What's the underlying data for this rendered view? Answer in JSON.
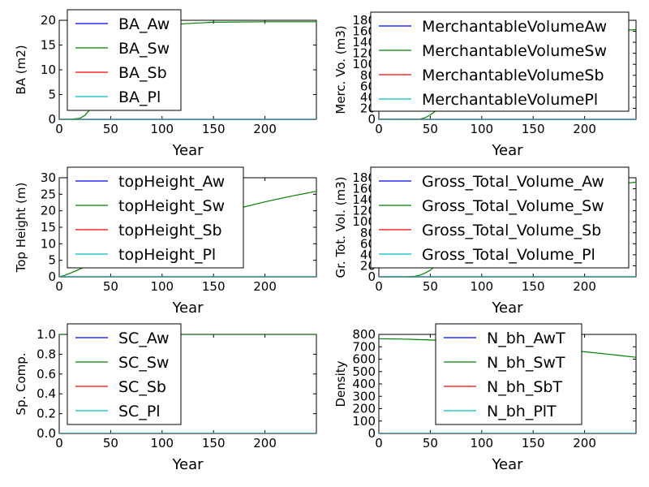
{
  "colors": {
    "Aw": "#0000ff",
    "Sw": "#008000",
    "Sb": "#ff0000",
    "Pl": "#00bfbf"
  },
  "chart_data": [
    {
      "type": "line",
      "xlabel": "Year",
      "ylabel": "BA (m2)",
      "xlim": [
        0,
        250
      ],
      "ylim": [
        0,
        20
      ],
      "xticks": [
        0,
        50,
        100,
        150,
        200
      ],
      "yticks": [
        0,
        5,
        10,
        15,
        20
      ],
      "legend_position": "upper-left",
      "series": [
        {
          "name": "BA_Aw",
          "color": "#0000ff",
          "x": [
            0,
            250
          ],
          "y": [
            0,
            0
          ]
        },
        {
          "name": "BA_Sw",
          "color": "#008000",
          "x": [
            0,
            10,
            20,
            25,
            30,
            35,
            40,
            45,
            50,
            60,
            70,
            80,
            90,
            100,
            120,
            150,
            200,
            250
          ],
          "y": [
            0,
            0,
            0.2,
            0.8,
            2.0,
            3.8,
            6.0,
            8.3,
            10.4,
            13.8,
            16.0,
            17.4,
            18.3,
            18.8,
            19.3,
            19.6,
            19.7,
            19.7
          ]
        },
        {
          "name": "BA_Sb",
          "color": "#ff0000",
          "x": [
            0,
            250
          ],
          "y": [
            0,
            0
          ]
        },
        {
          "name": "BA_Pl",
          "color": "#00bfbf",
          "x": [
            0,
            250
          ],
          "y": [
            0,
            0
          ]
        }
      ]
    },
    {
      "type": "line",
      "xlabel": "Year",
      "ylabel": "Merc. Vo. (m3)",
      "xlim": [
        0,
        250
      ],
      "ylim": [
        0,
        180
      ],
      "xticks": [
        0,
        50,
        100,
        150,
        200
      ],
      "yticks": [
        0,
        20,
        40,
        60,
        80,
        100,
        120,
        140,
        160,
        180
      ],
      "legend_position": "upper-left",
      "series": [
        {
          "name": "MerchantableVolumeAw",
          "color": "#0000ff",
          "x": [
            0,
            250
          ],
          "y": [
            0,
            0
          ]
        },
        {
          "name": "MerchantableVolumeSw",
          "color": "#008000",
          "x": [
            0,
            30,
            40,
            45,
            50,
            60,
            70,
            80,
            100,
            120,
            150,
            200,
            240,
            250
          ],
          "y": [
            0,
            0,
            0.5,
            3,
            8,
            22,
            38,
            55,
            85,
            108,
            130,
            152,
            162,
            163
          ]
        },
        {
          "name": "MerchantableVolumeSb",
          "color": "#ff0000",
          "x": [
            0,
            250
          ],
          "y": [
            0,
            0
          ]
        },
        {
          "name": "MerchantableVolumePl",
          "color": "#00bfbf",
          "x": [
            0,
            250
          ],
          "y": [
            0,
            0
          ]
        }
      ]
    },
    {
      "type": "line",
      "xlabel": "Year",
      "ylabel": "Top Height (m)",
      "xlim": [
        0,
        250
      ],
      "ylim": [
        0,
        30
      ],
      "xticks": [
        0,
        50,
        100,
        150,
        200
      ],
      "yticks": [
        0,
        5,
        10,
        15,
        20,
        25,
        30
      ],
      "legend_position": "upper-left",
      "series": [
        {
          "name": "topHeight_Aw",
          "color": "#0000ff",
          "x": [
            0,
            250
          ],
          "y": [
            0,
            0
          ]
        },
        {
          "name": "topHeight_Sw",
          "color": "#008000",
          "x": [
            0,
            5,
            10,
            20,
            30,
            40,
            50,
            75,
            100,
            125,
            150,
            175,
            200,
            225,
            250
          ],
          "y": [
            0,
            0.4,
            1.0,
            2.3,
            3.9,
            5.5,
            7.0,
            10.4,
            13.5,
            16.2,
            18.6,
            20.8,
            22.7,
            24.4,
            25.9
          ]
        },
        {
          "name": "topHeight_Sb",
          "color": "#ff0000",
          "x": [
            0,
            250
          ],
          "y": [
            0,
            0
          ]
        },
        {
          "name": "topHeight_Pl",
          "color": "#00bfbf",
          "x": [
            0,
            250
          ],
          "y": [
            0,
            0
          ]
        }
      ]
    },
    {
      "type": "line",
      "xlabel": "Year",
      "ylabel": "Gr. Tot. Vol. (m3)",
      "xlim": [
        0,
        250
      ],
      "ylim": [
        0,
        180
      ],
      "xticks": [
        0,
        50,
        100,
        150,
        200
      ],
      "yticks": [
        0,
        20,
        40,
        60,
        80,
        100,
        120,
        140,
        160,
        180
      ],
      "legend_position": "upper-left",
      "series": [
        {
          "name": "Gross_Total_Volume_Aw",
          "color": "#0000ff",
          "x": [
            0,
            250
          ],
          "y": [
            0,
            0
          ]
        },
        {
          "name": "Gross_Total_Volume_Sw",
          "color": "#008000",
          "x": [
            0,
            25,
            35,
            40,
            45,
            50,
            60,
            70,
            80,
            100,
            120,
            150,
            200,
            240,
            250
          ],
          "y": [
            0,
            0,
            1,
            3,
            7,
            12,
            28,
            45,
            62,
            92,
            115,
            137,
            160,
            170,
            172
          ]
        },
        {
          "name": "Gross_Total_Volume_Sb",
          "color": "#ff0000",
          "x": [
            0,
            250
          ],
          "y": [
            0,
            0
          ]
        },
        {
          "name": "Gross_Total_Volume_Pl",
          "color": "#00bfbf",
          "x": [
            0,
            250
          ],
          "y": [
            0,
            0
          ]
        }
      ]
    },
    {
      "type": "line",
      "xlabel": "Year",
      "ylabel": "Sp. Comp.",
      "xlim": [
        0,
        250
      ],
      "ylim": [
        0,
        1.0
      ],
      "xticks": [
        0,
        50,
        100,
        150,
        200
      ],
      "yticks": [
        "0.0",
        "0.2",
        "0.4",
        "0.6",
        "0.8",
        "1.0"
      ],
      "legend_position": "upper-left",
      "series": [
        {
          "name": "SC_Aw",
          "color": "#0000ff",
          "x": [
            0,
            250
          ],
          "y": [
            0,
            0
          ]
        },
        {
          "name": "SC_Sw",
          "color": "#008000",
          "x": [
            0,
            250
          ],
          "y": [
            1.0,
            1.0
          ]
        },
        {
          "name": "SC_Sb",
          "color": "#ff0000",
          "x": [
            0,
            250
          ],
          "y": [
            0,
            0
          ]
        },
        {
          "name": "SC_Pl",
          "color": "#00bfbf",
          "x": [
            0,
            250
          ],
          "y": [
            0,
            0
          ]
        }
      ]
    },
    {
      "type": "line",
      "xlabel": "Year",
      "ylabel": "Density",
      "xlim": [
        0,
        250
      ],
      "ylim": [
        0,
        800
      ],
      "xticks": [
        0,
        50,
        100,
        150,
        200
      ],
      "yticks": [
        0,
        100,
        200,
        300,
        400,
        500,
        600,
        700,
        800
      ],
      "legend_position": "upper-center",
      "series": [
        {
          "name": "N_bh_AwT",
          "color": "#0000ff",
          "x": [
            0,
            250
          ],
          "y": [
            0,
            0
          ]
        },
        {
          "name": "N_bh_SwT",
          "color": "#008000",
          "x": [
            0,
            25,
            50,
            75,
            100,
            125,
            150,
            175,
            200,
            225,
            250
          ],
          "y": [
            765,
            762,
            755,
            745,
            732,
            718,
            700,
            680,
            660,
            638,
            615
          ]
        },
        {
          "name": "N_bh_SbT",
          "color": "#ff0000",
          "x": [
            0,
            250
          ],
          "y": [
            0,
            0
          ]
        },
        {
          "name": "N_bh_PlT",
          "color": "#00bfbf",
          "x": [
            0,
            250
          ],
          "y": [
            0,
            0
          ]
        }
      ]
    }
  ]
}
